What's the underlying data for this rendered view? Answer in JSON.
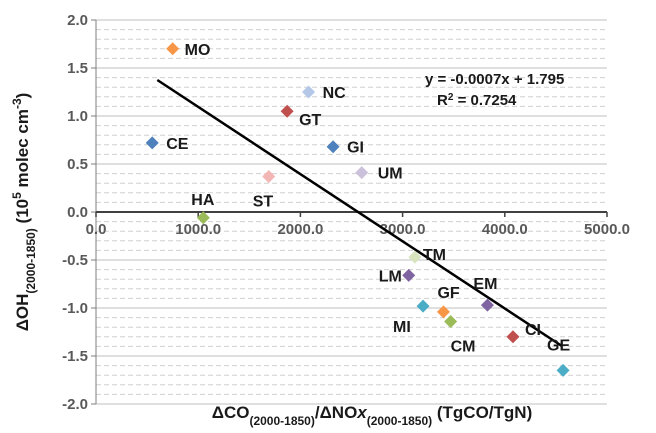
{
  "chart_data": {
    "type": "scatter",
    "title": "",
    "xlabel": {
      "main": "ΔCO",
      "sub1": "(2000-1850)",
      "mid": "/ΔNO",
      "italic": "x",
      "sub2": "(2000-1850)",
      "units": " (TgCO/TgN)"
    },
    "ylabel": {
      "main": "ΔOH",
      "sub": "(2000-1850)",
      "units_pre": " (10",
      "sup1": "5",
      "units_mid": " molec cm",
      "sup2": "-3",
      "units_post": ")"
    },
    "xlim": [
      0,
      5000
    ],
    "ylim": [
      -2.0,
      2.0
    ],
    "x_ticks": [
      "0.0",
      "1000.0",
      "2000.0",
      "3000.0",
      "4000.0",
      "5000.0"
    ],
    "y_ticks": [
      "2.0",
      "1.5",
      "1.0",
      "0.5",
      "0.0",
      "-0.5",
      "-1.0",
      "-1.5",
      "-2.0"
    ],
    "grid": true,
    "points": [
      {
        "label": "MO",
        "x": 750,
        "y": 1.7,
        "color": "#f79646"
      },
      {
        "label": "NC",
        "x": 2080,
        "y": 1.25,
        "color": "#b4c7e7"
      },
      {
        "label": "GT",
        "x": 1870,
        "y": 1.05,
        "color": "#c0504d"
      },
      {
        "label": "CE",
        "x": 550,
        "y": 0.72,
        "color": "#4f81bd"
      },
      {
        "label": "GI",
        "x": 2320,
        "y": 0.68,
        "color": "#4f81bd"
      },
      {
        "label": "UM",
        "x": 2600,
        "y": 0.41,
        "color": "#ccc1da"
      },
      {
        "label": "ST",
        "x": 1690,
        "y": 0.37,
        "color": "#f2b7b5"
      },
      {
        "label": "HA",
        "x": 1050,
        "y": -0.06,
        "color": "#9bbb59"
      },
      {
        "label": "TM",
        "x": 3120,
        "y": -0.47,
        "color": "#d7e4bd"
      },
      {
        "label": "LM",
        "x": 3060,
        "y": -0.66,
        "color": "#8064a2"
      },
      {
        "label": "EM",
        "x": 3830,
        "y": -0.97,
        "color": "#8064a2"
      },
      {
        "label": "MI",
        "x": 3200,
        "y": -0.98,
        "color": "#4bacc6"
      },
      {
        "label": "GF",
        "x": 3400,
        "y": -1.04,
        "color": "#f79646"
      },
      {
        "label": "CM",
        "x": 3470,
        "y": -1.14,
        "color": "#9bbb59"
      },
      {
        "label": "CI",
        "x": 4080,
        "y": -1.3,
        "color": "#c0504d"
      },
      {
        "label": "GE",
        "x": 4570,
        "y": -1.65,
        "color": "#4bacc6"
      }
    ],
    "trendline": {
      "slope": -0.0007,
      "intercept": 1.795,
      "x_range": [
        600,
        4560
      ],
      "color": "#000000"
    },
    "annotations": {
      "equation": "y = -0.0007x + 1.795",
      "r2_main": "R",
      "r2_sup": "2",
      "r2_value": " = 0.7254"
    }
  }
}
